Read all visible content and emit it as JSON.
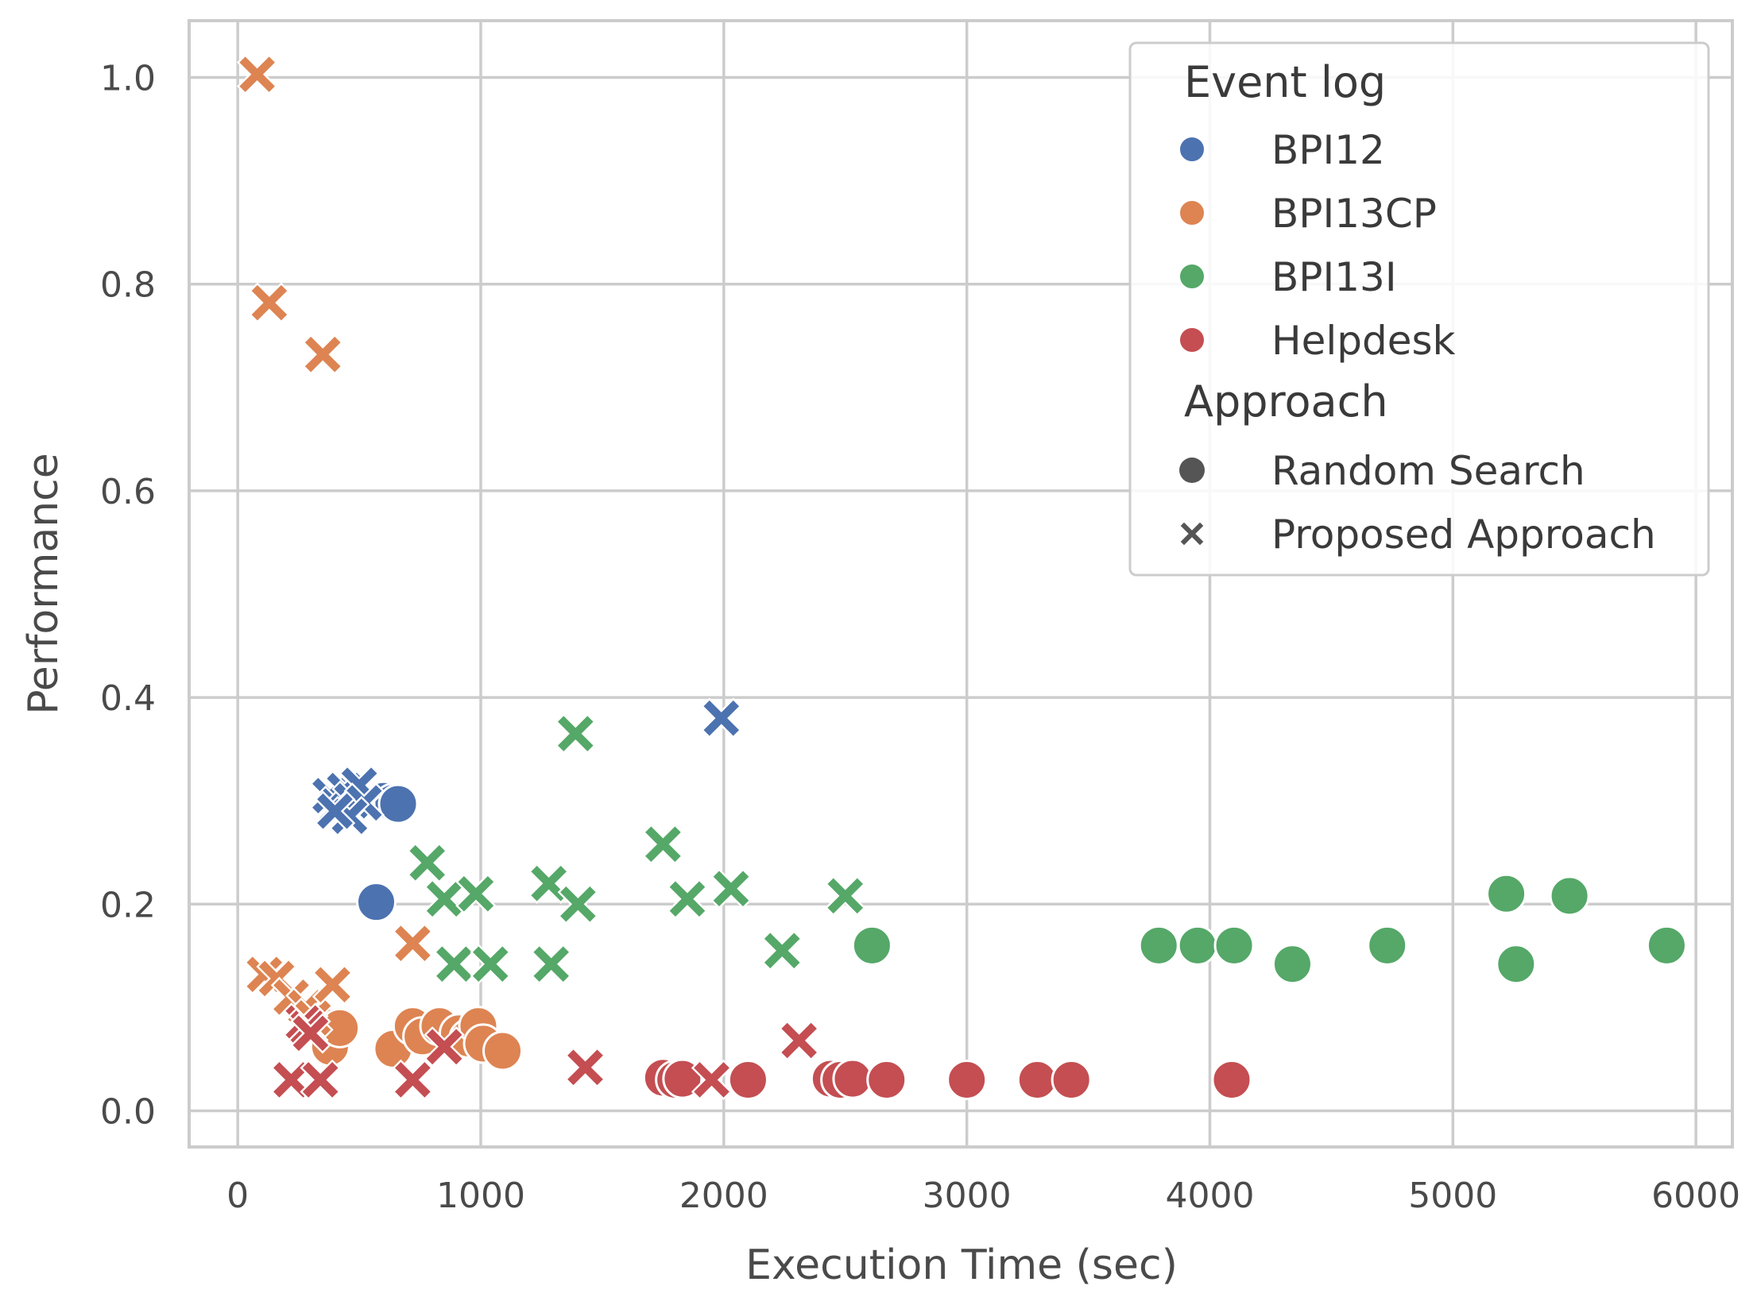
{
  "chart_data": {
    "type": "scatter",
    "title": "",
    "xlabel": "Execution Time (sec)",
    "ylabel": "Performance",
    "xlim": [
      -200,
      6150
    ],
    "ylim": [
      -0.035,
      1.055
    ],
    "xticks": [
      0,
      1000,
      2000,
      3000,
      4000,
      5000,
      6000
    ],
    "yticks": [
      0.0,
      0.2,
      0.4,
      0.6,
      0.8,
      1.0
    ],
    "xtick_labels": [
      "0",
      "1000",
      "2000",
      "3000",
      "4000",
      "5000",
      "6000"
    ],
    "ytick_labels": [
      "0.0",
      "0.2",
      "0.4",
      "0.6",
      "0.8",
      "1.0"
    ],
    "grid": true,
    "legend": {
      "placement": "top-right",
      "hue_title": "Event log",
      "style_title": "Approach",
      "hue_entries": [
        "BPI12",
        "BPI13CP",
        "BPI13I",
        "Helpdesk"
      ],
      "style_entries": [
        {
          "label": "Random Search",
          "marker": "circle"
        },
        {
          "label": "Proposed Approach",
          "marker": "x"
        }
      ]
    },
    "colors": {
      "BPI12": "#4c72b0",
      "BPI13CP": "#dd8452",
      "BPI13I": "#55a868",
      "Helpdesk": "#c44e52",
      "neutral": "#555555"
    },
    "series": [
      {
        "name": "BPI12",
        "approach": "Random Search",
        "x": [
          570,
          600,
          640,
          660
        ],
        "y": [
          0.202,
          0.3,
          0.298,
          0.297
        ]
      },
      {
        "name": "BPI12",
        "approach": "Proposed Approach",
        "x": [
          380,
          410,
          440,
          470,
          500,
          520,
          460,
          400,
          1990
        ],
        "y": [
          0.305,
          0.295,
          0.31,
          0.3,
          0.315,
          0.298,
          0.285,
          0.29,
          0.38
        ]
      },
      {
        "name": "BPI13CP",
        "approach": "Random Search",
        "x": [
          330,
          380,
          420,
          640,
          720,
          760,
          830,
          910,
          950,
          990,
          1010,
          1090
        ],
        "y": [
          0.085,
          0.062,
          0.08,
          0.06,
          0.082,
          0.072,
          0.082,
          0.075,
          0.07,
          0.082,
          0.065,
          0.058
        ]
      },
      {
        "name": "BPI13CP",
        "approach": "Proposed Approach",
        "x": [
          80,
          130,
          350,
          110,
          160,
          220,
          280,
          310,
          390,
          720
        ],
        "y": [
          1.003,
          0.782,
          0.732,
          0.132,
          0.128,
          0.11,
          0.1,
          0.09,
          0.122,
          0.162
        ]
      },
      {
        "name": "BPI13I",
        "approach": "Random Search",
        "x": [
          2610,
          3790,
          3950,
          4100,
          4340,
          4730,
          5220,
          5260,
          5480,
          5880
        ],
        "y": [
          0.16,
          0.16,
          0.16,
          0.16,
          0.142,
          0.16,
          0.21,
          0.142,
          0.208,
          0.16
        ]
      },
      {
        "name": "BPI13I",
        "approach": "Proposed Approach",
        "x": [
          1390,
          1750,
          780,
          850,
          980,
          890,
          1040,
          1280,
          1400,
          1290,
          1850,
          2030,
          2240,
          2500
        ],
        "y": [
          0.365,
          0.258,
          0.24,
          0.205,
          0.21,
          0.142,
          0.142,
          0.22,
          0.2,
          0.142,
          0.205,
          0.215,
          0.155,
          0.208
        ]
      },
      {
        "name": "Helpdesk",
        "approach": "Random Search",
        "x": [
          1750,
          1800,
          1830,
          2100,
          2440,
          2480,
          2530,
          2670,
          3000,
          3290,
          3430,
          4090
        ],
        "y": [
          0.032,
          0.03,
          0.031,
          0.03,
          0.031,
          0.03,
          0.031,
          0.03,
          0.03,
          0.03,
          0.03,
          0.03
        ]
      },
      {
        "name": "Helpdesk",
        "approach": "Proposed Approach",
        "x": [
          220,
          270,
          290,
          300,
          340,
          720,
          850,
          1430,
          1950,
          2310
        ],
        "y": [
          0.03,
          0.085,
          0.08,
          0.075,
          0.03,
          0.03,
          0.062,
          0.042,
          0.03,
          0.068
        ]
      }
    ]
  }
}
